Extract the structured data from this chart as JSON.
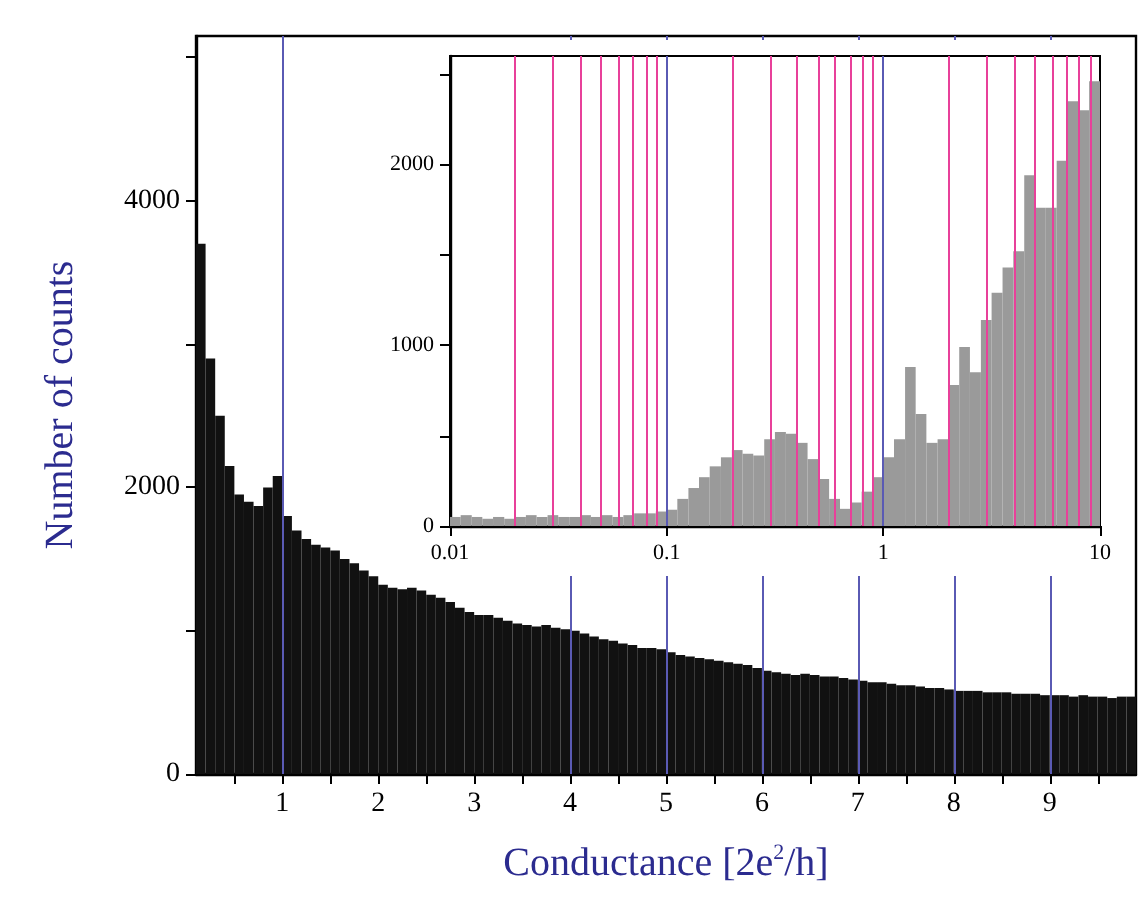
{
  "chart_data": [
    {
      "type": "histogram",
      "xlabel": "Conductance [2e$^{2}$/h]",
      "ylabel": "Number of counts",
      "color": "#111111",
      "bins": [
        0.1,
        0.2,
        0.3,
        0.4,
        0.5,
        0.6,
        0.7,
        0.8,
        0.9,
        1.0,
        1.1,
        1.2,
        1.3,
        1.4,
        1.5,
        1.6,
        1.7,
        1.8,
        1.9,
        2.0,
        2.1,
        2.2,
        2.3,
        2.4,
        2.5,
        2.6,
        2.7,
        2.8,
        2.9,
        3.0,
        3.1,
        3.2,
        3.3,
        3.4,
        3.5,
        3.6,
        3.7,
        3.8,
        3.9,
        4.0,
        4.1,
        4.2,
        4.3,
        4.4,
        4.5,
        4.6,
        4.7,
        4.8,
        4.9,
        5.0,
        5.1,
        5.2,
        5.3,
        5.4,
        5.5,
        5.6,
        5.7,
        5.8,
        5.9,
        6.0,
        6.1,
        6.2,
        6.3,
        6.4,
        6.5,
        6.6,
        6.7,
        6.8,
        6.9,
        7.0,
        7.1,
        7.2,
        7.3,
        7.4,
        7.5,
        7.6,
        7.7,
        7.8,
        7.9,
        8.0,
        8.1,
        8.2,
        8.3,
        8.4,
        8.5,
        8.6,
        8.7,
        8.8,
        8.9,
        9.0,
        9.1,
        9.2,
        9.3,
        9.4,
        9.5,
        9.6,
        9.7,
        9.8,
        9.9
      ],
      "values": [
        3700,
        2900,
        2500,
        2150,
        1950,
        1900,
        1870,
        2000,
        2080,
        1800,
        1700,
        1640,
        1600,
        1580,
        1560,
        1500,
        1470,
        1420,
        1380,
        1320,
        1300,
        1290,
        1300,
        1280,
        1250,
        1230,
        1200,
        1160,
        1130,
        1110,
        1110,
        1090,
        1070,
        1050,
        1040,
        1030,
        1040,
        1020,
        1010,
        1000,
        980,
        960,
        940,
        930,
        910,
        900,
        880,
        880,
        870,
        850,
        830,
        820,
        810,
        800,
        790,
        780,
        770,
        760,
        740,
        720,
        710,
        700,
        690,
        700,
        690,
        680,
        680,
        670,
        660,
        650,
        640,
        640,
        630,
        620,
        620,
        610,
        600,
        600,
        590,
        580,
        580,
        580,
        570,
        570,
        570,
        560,
        560,
        560,
        550,
        550,
        550,
        540,
        550,
        540,
        540,
        530,
        540,
        540
      ],
      "xlim": [
        0.1,
        9.9
      ],
      "xticks": [
        {
          "value": 0.5,
          "label": null
        },
        1,
        {
          "value": 1.5,
          "label": null
        },
        2,
        {
          "value": 2.5,
          "label": null
        },
        3,
        {
          "value": 3.5,
          "label": null
        },
        4,
        {
          "value": 4.5,
          "label": null
        },
        5,
        {
          "value": 5.5,
          "label": null
        },
        6,
        {
          "value": 6.5,
          "label": null
        },
        7,
        {
          "value": 7.5,
          "label": null
        },
        8,
        {
          "value": 8.5,
          "label": null
        },
        9,
        {
          "value": 9.5,
          "label": null
        }
      ],
      "ylim": [
        0,
        5150
      ],
      "yticks": [
        0,
        {
          "value": 1000,
          "label": null
        },
        2000,
        {
          "value": 3000,
          "label": null
        },
        4000,
        {
          "value": 5000,
          "label": null
        }
      ],
      "ref_lines": [
        {
          "axis": "x",
          "value": 1,
          "color": "#5a5ab4"
        },
        {
          "axis": "x",
          "value": 4,
          "color": "#5a5ab4"
        },
        {
          "axis": "x",
          "value": 5,
          "color": "#5a5ab4"
        },
        {
          "axis": "x",
          "value": 6,
          "color": "#5a5ab4"
        },
        {
          "axis": "x",
          "value": 7,
          "color": "#5a5ab4"
        },
        {
          "axis": "x",
          "value": 8,
          "color": "#5a5ab4"
        },
        {
          "axis": "x",
          "value": 9,
          "color": "#5a5ab4"
        }
      ],
      "grid": false
    },
    {
      "type": "histogram",
      "color": "#9a9a9a",
      "log": "x",
      "bins": [
        0.01,
        0.0112,
        0.0126,
        0.0141,
        0.0158,
        0.0178,
        0.02,
        0.0224,
        0.0251,
        0.0282,
        0.0316,
        0.0355,
        0.0398,
        0.0447,
        0.0501,
        0.0562,
        0.0631,
        0.0708,
        0.0794,
        0.0891,
        0.1,
        0.112,
        0.126,
        0.141,
        0.158,
        0.178,
        0.2,
        0.224,
        0.251,
        0.282,
        0.316,
        0.355,
        0.398,
        0.447,
        0.501,
        0.562,
        0.631,
        0.708,
        0.794,
        0.891,
        1,
        1.12,
        1.26,
        1.41,
        1.58,
        1.78,
        2,
        2.24,
        2.51,
        2.82,
        3.16,
        3.55,
        3.98,
        4.47,
        5.01,
        5.62,
        6.31,
        7.08,
        7.94,
        8.91,
        10
      ],
      "values": [
        50,
        60,
        50,
        40,
        50,
        40,
        50,
        60,
        50,
        60,
        50,
        50,
        60,
        50,
        60,
        50,
        60,
        70,
        70,
        80,
        90,
        150,
        210,
        270,
        330,
        380,
        420,
        400,
        390,
        480,
        520,
        510,
        460,
        370,
        260,
        150,
        95,
        130,
        190,
        270,
        380,
        480,
        880,
        620,
        460,
        480,
        780,
        990,
        850,
        1140,
        1290,
        1430,
        1520,
        1940,
        1760,
        1760,
        2020,
        2350,
        2300,
        2460
      ],
      "xlim": [
        0.01,
        10
      ],
      "xticks": [
        0.01,
        0.1,
        1,
        10
      ],
      "ylim": [
        0,
        2600
      ],
      "yticks": [
        0,
        {
          "value": 500,
          "label": null
        },
        1000,
        {
          "value": 1500,
          "label": null
        },
        2000,
        {
          "value": 2500,
          "label": null
        }
      ],
      "ref_lines": [
        {
          "axis": "x",
          "value": 0.02,
          "color": "#e8409a"
        },
        {
          "axis": "x",
          "value": 0.03,
          "color": "#e8409a"
        },
        {
          "axis": "x",
          "value": 0.04,
          "color": "#e8409a"
        },
        {
          "axis": "x",
          "value": 0.05,
          "color": "#e8409a"
        },
        {
          "axis": "x",
          "value": 0.06,
          "color": "#e8409a"
        },
        {
          "axis": "x",
          "value": 0.07,
          "color": "#e8409a"
        },
        {
          "axis": "x",
          "value": 0.08,
          "color": "#e8409a"
        },
        {
          "axis": "x",
          "value": 0.09,
          "color": "#e8409a"
        },
        {
          "axis": "x",
          "value": 0.1,
          "color": "#5a5ab4"
        },
        {
          "axis": "x",
          "value": 0.2,
          "color": "#e8409a"
        },
        {
          "axis": "x",
          "value": 0.3,
          "color": "#e8409a"
        },
        {
          "axis": "x",
          "value": 0.4,
          "color": "#e8409a"
        },
        {
          "axis": "x",
          "value": 0.5,
          "color": "#e8409a"
        },
        {
          "axis": "x",
          "value": 0.6,
          "color": "#e8409a"
        },
        {
          "axis": "x",
          "value": 0.7,
          "color": "#e8409a"
        },
        {
          "axis": "x",
          "value": 0.8,
          "color": "#e8409a"
        },
        {
          "axis": "x",
          "value": 0.9,
          "color": "#e8409a"
        },
        {
          "axis": "x",
          "value": 1,
          "color": "#5a5ab4"
        },
        {
          "axis": "x",
          "value": 2,
          "color": "#e8409a"
        },
        {
          "axis": "x",
          "value": 3,
          "color": "#e8409a"
        },
        {
          "axis": "x",
          "value": 4,
          "color": "#e8409a"
        },
        {
          "axis": "x",
          "value": 5,
          "color": "#e8409a"
        },
        {
          "axis": "x",
          "value": 6,
          "color": "#e8409a"
        },
        {
          "axis": "x",
          "value": 7,
          "color": "#e8409a"
        },
        {
          "axis": "x",
          "value": 8,
          "color": "#e8409a"
        },
        {
          "axis": "x",
          "value": 9,
          "color": "#e8409a"
        }
      ],
      "grid": false
    }
  ]
}
